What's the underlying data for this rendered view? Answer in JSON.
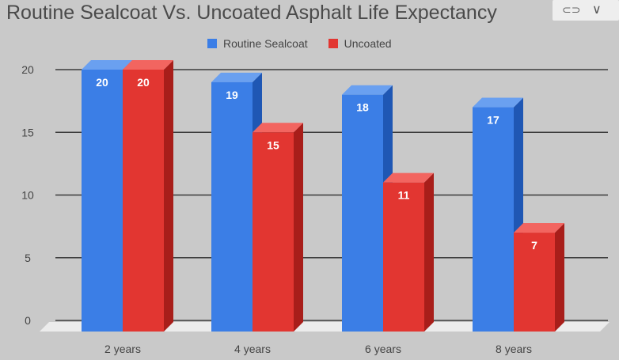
{
  "chart_data": {
    "type": "bar",
    "title": "Routine Sealcoat Vs. Uncoated Asphalt Life Expectancy",
    "categories": [
      "2 years",
      "4 years",
      "6 years",
      "8 years"
    ],
    "series": [
      {
        "name": "Routine Sealcoat",
        "values": [
          20,
          19,
          18,
          17
        ],
        "color": "#3b7ee6",
        "side": "#1f57b4",
        "top": "#6aa0f0"
      },
      {
        "name": "Uncoated",
        "values": [
          20,
          15,
          11,
          7
        ],
        "color": "#e23631",
        "side": "#a81e1a",
        "top": "#f26560"
      }
    ],
    "yticks": [
      "0",
      "5",
      "10",
      "15",
      "20"
    ],
    "ylim": [
      0,
      20
    ],
    "grid": true,
    "legend_position": "top-center",
    "style": "3d-column"
  },
  "controls": {
    "link_icon": "link-icon",
    "menu_icon": "chevron-down-icon"
  }
}
